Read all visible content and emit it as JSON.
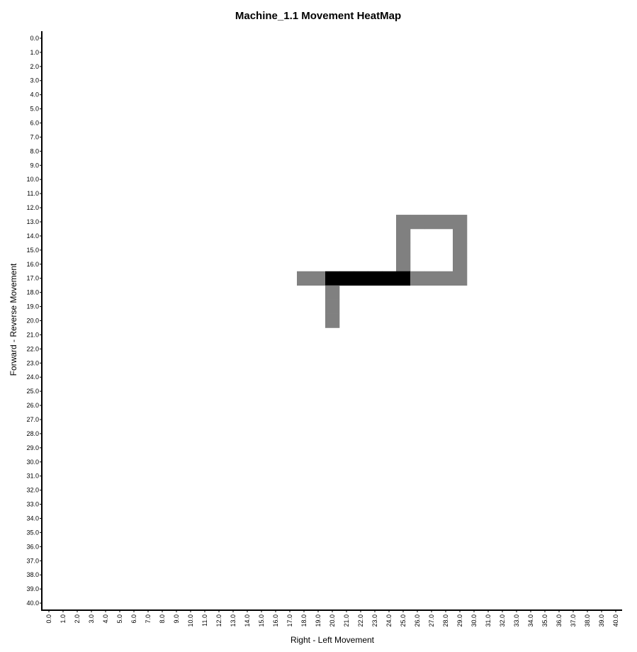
{
  "chart_data": {
    "type": "heatmap",
    "title": "Machine_1.1 Movement HeatMap",
    "xlabel": "Right - Left Movement",
    "ylabel": "Forward - Reverse Movement",
    "x_ticks": [
      "0.0",
      "1.0",
      "2.0",
      "3.0",
      "4.0",
      "5.0",
      "6.0",
      "7.0",
      "8.0",
      "9.0",
      "10.0",
      "11.0",
      "12.0",
      "13.0",
      "14.0",
      "15.0",
      "16.0",
      "17.0",
      "18.0",
      "19.0",
      "20.0",
      "21.0",
      "22.0",
      "23.0",
      "24.0",
      "25.0",
      "26.0",
      "27.0",
      "28.0",
      "29.0",
      "30.0",
      "31.0",
      "32.0",
      "33.0",
      "34.0",
      "35.0",
      "36.0",
      "37.0",
      "38.0",
      "39.0",
      "40.0"
    ],
    "y_ticks": [
      "0.0",
      "1.0",
      "2.0",
      "3.0",
      "4.0",
      "5.0",
      "6.0",
      "7.0",
      "8.0",
      "9.0",
      "10.0",
      "11.0",
      "12.0",
      "13.0",
      "14.0",
      "15.0",
      "16.0",
      "17.0",
      "18.0",
      "19.0",
      "20.0",
      "21.0",
      "22.0",
      "23.0",
      "24.0",
      "25.0",
      "26.0",
      "27.0",
      "28.0",
      "29.0",
      "30.0",
      "31.0",
      "32.0",
      "33.0",
      "34.0",
      "35.0",
      "36.0",
      "37.0",
      "38.0",
      "39.0",
      "40.0"
    ],
    "xlim": [
      0,
      40
    ],
    "ylim": [
      0,
      40
    ],
    "y_inverted": true,
    "grid": false,
    "colormap": "white-to-black",
    "color_low": "#ffffff",
    "color_mid": "#808080",
    "color_high": "#000000",
    "value_range": [
      0,
      2
    ],
    "cells": [
      {
        "x": 25,
        "y": 13,
        "value": 1
      },
      {
        "x": 26,
        "y": 13,
        "value": 1
      },
      {
        "x": 27,
        "y": 13,
        "value": 1
      },
      {
        "x": 28,
        "y": 13,
        "value": 1
      },
      {
        "x": 29,
        "y": 13,
        "value": 1
      },
      {
        "x": 25,
        "y": 14,
        "value": 1
      },
      {
        "x": 29,
        "y": 14,
        "value": 1
      },
      {
        "x": 25,
        "y": 15,
        "value": 1
      },
      {
        "x": 29,
        "y": 15,
        "value": 1
      },
      {
        "x": 25,
        "y": 16,
        "value": 1
      },
      {
        "x": 29,
        "y": 16,
        "value": 1
      },
      {
        "x": 18,
        "y": 17,
        "value": 1
      },
      {
        "x": 19,
        "y": 17,
        "value": 1
      },
      {
        "x": 20,
        "y": 17,
        "value": 2
      },
      {
        "x": 21,
        "y": 17,
        "value": 2
      },
      {
        "x": 22,
        "y": 17,
        "value": 2
      },
      {
        "x": 23,
        "y": 17,
        "value": 2
      },
      {
        "x": 24,
        "y": 17,
        "value": 2
      },
      {
        "x": 25,
        "y": 17,
        "value": 2
      },
      {
        "x": 26,
        "y": 17,
        "value": 1
      },
      {
        "x": 27,
        "y": 17,
        "value": 1
      },
      {
        "x": 28,
        "y": 17,
        "value": 1
      },
      {
        "x": 29,
        "y": 17,
        "value": 1
      },
      {
        "x": 20,
        "y": 18,
        "value": 1
      },
      {
        "x": 20,
        "y": 19,
        "value": 1
      },
      {
        "x": 20,
        "y": 20,
        "value": 1
      }
    ]
  }
}
